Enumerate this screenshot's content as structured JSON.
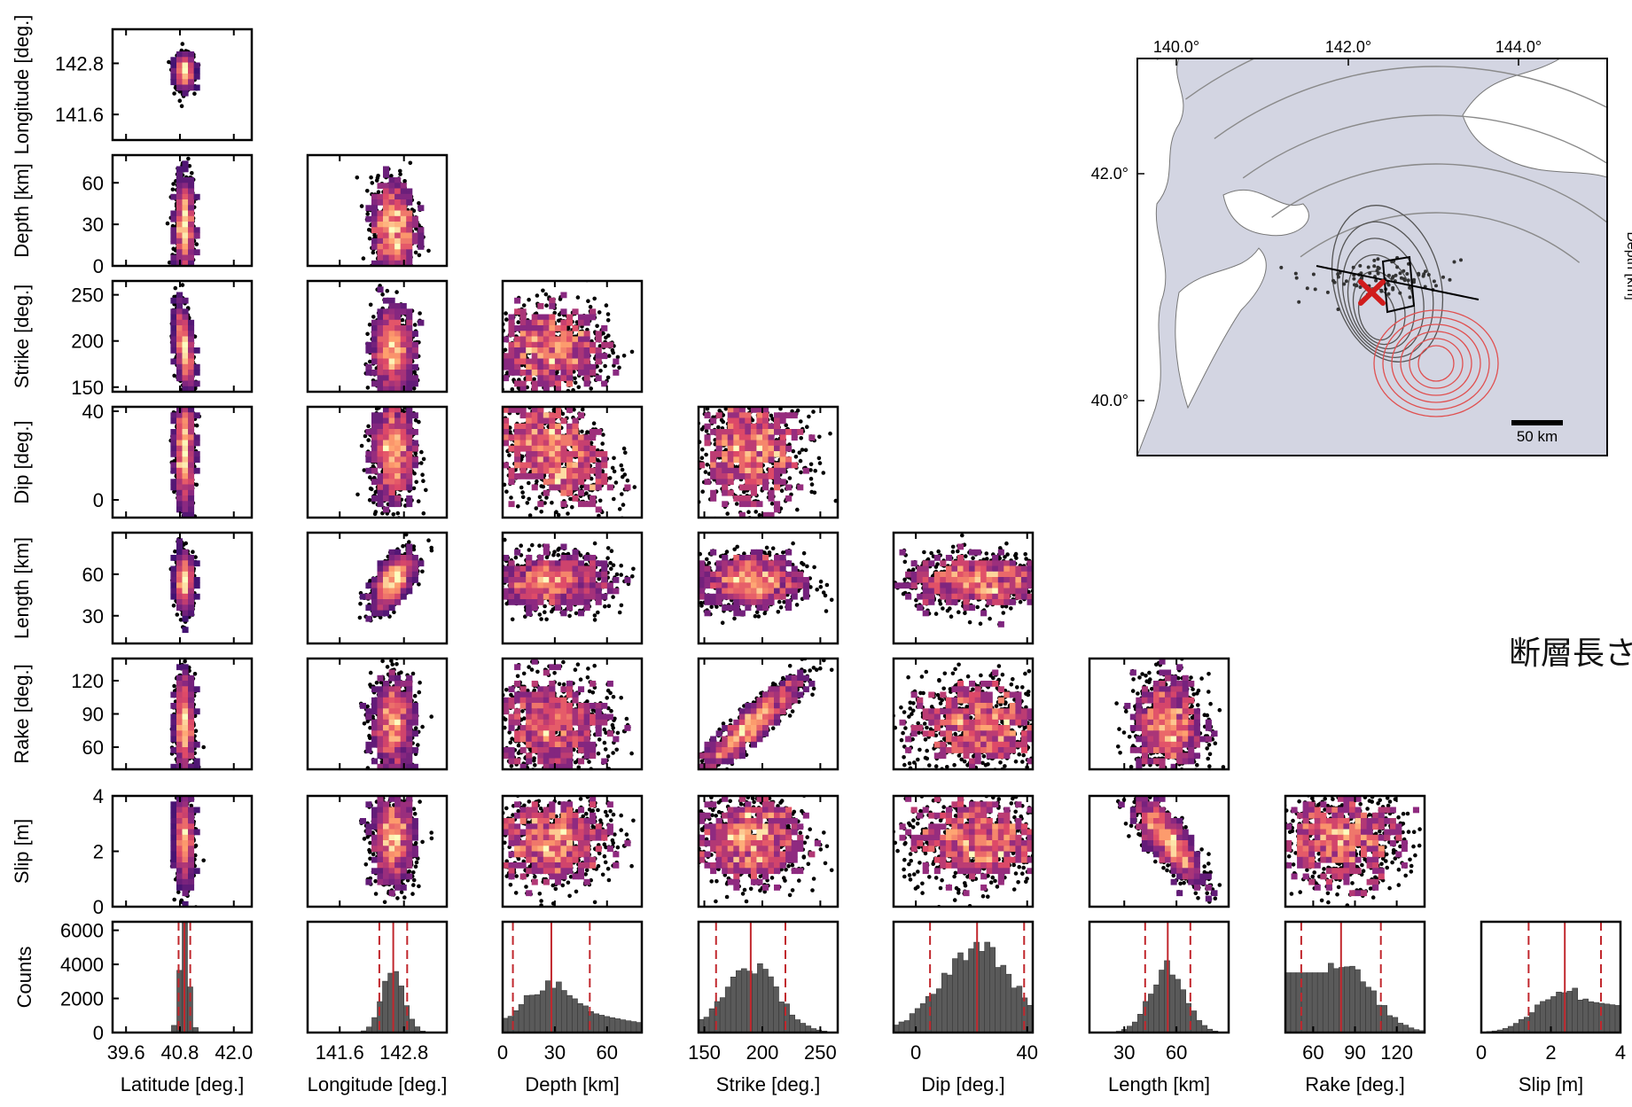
{
  "annotation_text": "断層長さ",
  "chart_data": {
    "type": "corner-scatter-histogram",
    "parameters": [
      {
        "key": "lat",
        "label": "Latitude [deg.]",
        "range": [
          39.3,
          42.4
        ],
        "ticks": [
          39.6,
          40.8,
          42.0
        ],
        "mean": 40.9,
        "std": 0.1
      },
      {
        "key": "lon",
        "label": "Longitude [deg.]",
        "range": [
          141.0,
          143.6
        ],
        "ticks": [
          141.6,
          142.8
        ],
        "mean": 142.6,
        "std": 0.2
      },
      {
        "key": "depth",
        "label": "Depth [km]",
        "range": [
          0,
          80
        ],
        "ticks": [
          0,
          30,
          60
        ],
        "mean": 28,
        "std": 17
      },
      {
        "key": "strike",
        "label": "Strike [deg.]",
        "range": [
          145,
          265
        ],
        "ticks": [
          150,
          200,
          250
        ],
        "mean": 190,
        "std": 23
      },
      {
        "key": "dip",
        "label": "Dip [deg.]",
        "range": [
          -8,
          42
        ],
        "ticks": [
          0,
          40
        ],
        "mean": 22,
        "std": 13
      },
      {
        "key": "length",
        "label": "Length [km]",
        "range": [
          10,
          90
        ],
        "ticks": [
          30,
          60
        ],
        "mean": 55,
        "std": 10
      },
      {
        "key": "rake",
        "label": "Rake [deg.]",
        "range": [
          40,
          140
        ],
        "ticks": [
          60,
          90,
          120
        ],
        "mean": 80,
        "std": 22
      },
      {
        "key": "slip",
        "label": "Slip [m]",
        "range": [
          0,
          4
        ],
        "ticks": [
          0,
          2,
          4
        ],
        "mean": 2.4,
        "std": 0.8
      }
    ],
    "row_axis_ticks": {
      "lon": [
        "141.6",
        "142.8"
      ],
      "depth": [
        "0",
        "30",
        "60"
      ],
      "strike": [
        "150",
        "200",
        "250"
      ],
      "dip": [
        "0",
        "40"
      ],
      "length": [
        "30",
        "60"
      ],
      "rake": [
        "60",
        "90",
        "120"
      ],
      "slip": [
        "0",
        "2",
        "4"
      ]
    },
    "histogram": {
      "ylabel": "Counts",
      "ylim": [
        0,
        6500
      ],
      "yticks": [
        "0",
        "2000",
        "4000",
        "6000"
      ],
      "peaks": [
        6400,
        3900,
        2800,
        3900,
        5000,
        3900,
        3900,
        2500
      ],
      "median_line_color": "#c1272d",
      "bar_color": "#5a5a5a",
      "xtick_labels": [
        [
          "39.6",
          "40.8",
          "42.0"
        ],
        [
          "141.6",
          "142.8"
        ],
        [
          "0",
          "30",
          "60"
        ],
        [
          "150",
          "200",
          "250"
        ],
        [
          "0",
          "40"
        ],
        [
          "30",
          "60"
        ],
        [
          "60",
          "90",
          "120"
        ],
        [
          "0",
          "2",
          "4"
        ]
      ]
    },
    "colormap": [
      "#000004",
      "#3b0f70",
      "#8c2981",
      "#de4968",
      "#fe9f6d",
      "#fcfdbf"
    ],
    "map": {
      "lon_ticks": [
        "140.0°",
        "142.0°",
        "144.0°"
      ],
      "lat_ticks": [
        "42.0°",
        "40.0°"
      ],
      "scale_bar": "50 km",
      "epicenter_marker_color": "#d01c1c",
      "contour_colors": [
        "#555555",
        "#e05050"
      ]
    },
    "right_edge_label": "Depth [km]"
  }
}
